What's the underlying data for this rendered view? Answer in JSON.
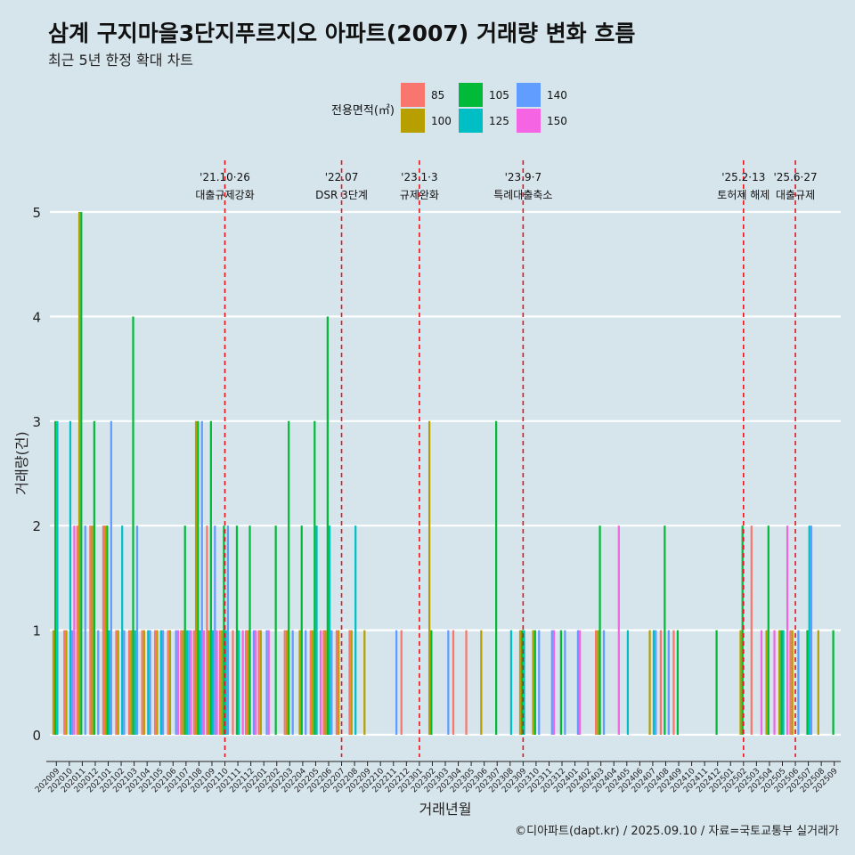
{
  "title": "삼계 구지마을3단지푸르지오 아파트(2007) 거래량 변화 흐름",
  "subtitle": "최근 5년 한정 확대 차트",
  "caption": "©디아파트(dapt.kr) / 2025.09.10 / 자료=국토교통부 실거래가",
  "chart_data": {
    "type": "bar",
    "xlabel": "거래년월",
    "ylabel": "거래량(건)",
    "ylim": [
      0,
      5
    ],
    "yticks": [
      0,
      1,
      2,
      3,
      4,
      5
    ],
    "grid": "horizontal",
    "legend": {
      "title": "전용면적(㎡)",
      "placement": "top",
      "items": [
        {
          "name": "85",
          "color": "#F8766D"
        },
        {
          "name": "100",
          "color": "#B79F00"
        },
        {
          "name": "105",
          "color": "#00BA38"
        },
        {
          "name": "125",
          "color": "#00BFC4"
        },
        {
          "name": "140",
          "color": "#619CFF"
        },
        {
          "name": "150",
          "color": "#F564E3"
        }
      ]
    },
    "categories": [
      "202009",
      "202010",
      "202011",
      "202012",
      "202101",
      "202102",
      "202103",
      "202104",
      "202105",
      "202106",
      "202107",
      "202108",
      "202109",
      "202110",
      "202111",
      "202112",
      "202201",
      "202202",
      "202203",
      "202204",
      "202205",
      "202206",
      "202207",
      "202208",
      "202209",
      "202210",
      "202211",
      "202212",
      "202301",
      "202302",
      "202303",
      "202304",
      "202305",
      "202306",
      "202307",
      "202308",
      "202309",
      "202310",
      "202311",
      "202312",
      "202401",
      "202402",
      "202403",
      "202404",
      "202405",
      "202406",
      "202407",
      "202408",
      "202409",
      "202410",
      "202411",
      "202412",
      "202501",
      "202502",
      "202503",
      "202504",
      "202505",
      "202506",
      "202507",
      "202508",
      "202509"
    ],
    "bars": [
      {
        "month": "202009",
        "values": {
          "85": 0,
          "100": 1,
          "105": 3,
          "125": 3,
          "140": 0,
          "150": 0
        }
      },
      {
        "month": "202010",
        "values": {
          "85": 1,
          "100": 1,
          "105": 0,
          "125": 3,
          "140": 1,
          "150": 2
        }
      },
      {
        "month": "202011",
        "values": {
          "85": 2,
          "100": 5,
          "105": 5,
          "125": 0,
          "140": 2,
          "150": 0
        }
      },
      {
        "month": "202012",
        "values": {
          "85": 2,
          "100": 2,
          "105": 3,
          "125": 0,
          "140": 1,
          "150": 0
        }
      },
      {
        "month": "202101",
        "values": {
          "85": 2,
          "100": 2,
          "105": 2,
          "125": 1,
          "140": 3,
          "150": 0
        }
      },
      {
        "month": "202102",
        "values": {
          "85": 1,
          "100": 1,
          "105": 0,
          "125": 2,
          "140": 1,
          "150": 0
        }
      },
      {
        "month": "202103",
        "values": {
          "85": 1,
          "100": 1,
          "105": 4,
          "125": 1,
          "140": 2,
          "150": 0
        }
      },
      {
        "month": "202104",
        "values": {
          "85": 1,
          "100": 1,
          "105": 0,
          "125": 1,
          "140": 1,
          "150": 0
        }
      },
      {
        "month": "202105",
        "values": {
          "85": 1,
          "100": 1,
          "105": 0,
          "125": 1,
          "140": 1,
          "150": 0
        }
      },
      {
        "month": "202106",
        "values": {
          "85": 1,
          "100": 1,
          "105": 0,
          "125": 0,
          "140": 1,
          "150": 1
        }
      },
      {
        "month": "202107",
        "values": {
          "85": 1,
          "100": 1,
          "105": 2,
          "125": 1,
          "140": 1,
          "150": 1
        }
      },
      {
        "month": "202108",
        "values": {
          "85": 1,
          "100": 3,
          "105": 3,
          "125": 1,
          "140": 3,
          "150": 1
        }
      },
      {
        "month": "202109",
        "values": {
          "85": 2,
          "100": 1,
          "105": 3,
          "125": 1,
          "140": 2,
          "150": 1
        }
      },
      {
        "month": "202110",
        "values": {
          "85": 1,
          "100": 1,
          "105": 2,
          "125": 1,
          "140": 2,
          "150": 0
        }
      },
      {
        "month": "202111",
        "values": {
          "85": 1,
          "100": 0,
          "105": 2,
          "125": 1,
          "140": 0,
          "150": 1
        }
      },
      {
        "month": "202112",
        "values": {
          "85": 1,
          "100": 1,
          "105": 2,
          "125": 0,
          "140": 1,
          "150": 1
        }
      },
      {
        "month": "202201",
        "values": {
          "85": 1,
          "100": 1,
          "105": 0,
          "125": 0,
          "140": 1,
          "150": 1
        }
      },
      {
        "month": "202202",
        "values": {
          "85": 0,
          "100": 0,
          "105": 2,
          "125": 0,
          "140": 0,
          "150": 0
        }
      },
      {
        "month": "202203",
        "values": {
          "85": 1,
          "100": 1,
          "105": 3,
          "125": 0,
          "140": 1,
          "150": 0
        }
      },
      {
        "month": "202204",
        "values": {
          "85": 0,
          "100": 1,
          "105": 2,
          "125": 0,
          "140": 1,
          "150": 0
        }
      },
      {
        "month": "202205",
        "values": {
          "85": 1,
          "100": 1,
          "105": 3,
          "125": 2,
          "140": 0,
          "150": 1
        }
      },
      {
        "month": "202206",
        "values": {
          "85": 1,
          "100": 1,
          "105": 4,
          "125": 2,
          "140": 1,
          "150": 0
        }
      },
      {
        "month": "202207",
        "values": {
          "85": 1,
          "100": 1,
          "105": 0,
          "125": 0,
          "140": 0,
          "150": 0
        }
      },
      {
        "month": "202208",
        "values": {
          "85": 1,
          "100": 1,
          "105": 0,
          "125": 2,
          "140": 0,
          "150": 0
        }
      },
      {
        "month": "202209",
        "values": {
          "85": 0,
          "100": 1,
          "105": 0,
          "125": 0,
          "140": 0,
          "150": 0
        }
      },
      {
        "month": "202210",
        "values": {
          "85": 0,
          "100": 0,
          "105": 0,
          "125": 0,
          "140": 0,
          "150": 0
        }
      },
      {
        "month": "202211",
        "values": {
          "85": 0,
          "100": 0,
          "105": 0,
          "125": 0,
          "140": 1,
          "150": 0
        }
      },
      {
        "month": "202212",
        "values": {
          "85": 1,
          "100": 0,
          "105": 0,
          "125": 0,
          "140": 0,
          "150": 0
        }
      },
      {
        "month": "202301",
        "values": {
          "85": 0,
          "100": 0,
          "105": 0,
          "125": 0,
          "140": 0,
          "150": 0
        }
      },
      {
        "month": "202302",
        "values": {
          "85": 0,
          "100": 3,
          "105": 1,
          "125": 0,
          "140": 0,
          "150": 0
        }
      },
      {
        "month": "202303",
        "values": {
          "85": 0,
          "100": 0,
          "105": 0,
          "125": 0,
          "140": 1,
          "150": 0
        }
      },
      {
        "month": "202304",
        "values": {
          "85": 1,
          "100": 0,
          "105": 0,
          "125": 0,
          "140": 0,
          "150": 0
        }
      },
      {
        "month": "202305",
        "values": {
          "85": 1,
          "100": 0,
          "105": 0,
          "125": 0,
          "140": 0,
          "150": 0
        }
      },
      {
        "month": "202306",
        "values": {
          "85": 0,
          "100": 1,
          "105": 0,
          "125": 0,
          "140": 0,
          "150": 0
        }
      },
      {
        "month": "202307",
        "values": {
          "85": 0,
          "100": 0,
          "105": 3,
          "125": 0,
          "140": 0,
          "150": 0
        }
      },
      {
        "month": "202308",
        "values": {
          "85": 0,
          "100": 0,
          "105": 0,
          "125": 1,
          "140": 0,
          "150": 0
        }
      },
      {
        "month": "202309",
        "values": {
          "85": 0,
          "100": 1,
          "105": 1,
          "125": 1,
          "140": 0,
          "150": 0
        }
      },
      {
        "month": "202310",
        "values": {
          "85": 0,
          "100": 1,
          "105": 1,
          "125": 0,
          "140": 1,
          "150": 0
        }
      },
      {
        "month": "202311",
        "values": {
          "85": 0,
          "100": 0,
          "105": 0,
          "125": 0,
          "140": 1,
          "150": 1
        }
      },
      {
        "month": "202312",
        "values": {
          "85": 0,
          "100": 0,
          "105": 1,
          "125": 0,
          "140": 1,
          "150": 0
        }
      },
      {
        "month": "202401",
        "values": {
          "85": 0,
          "100": 0,
          "105": 0,
          "125": 0,
          "140": 1,
          "150": 1
        }
      },
      {
        "month": "202402",
        "values": {
          "85": 0,
          "100": 0,
          "105": 0,
          "125": 0,
          "140": 0,
          "150": 0
        }
      },
      {
        "month": "202403",
        "values": {
          "85": 1,
          "100": 1,
          "105": 2,
          "125": 0,
          "140": 1,
          "150": 0
        }
      },
      {
        "month": "202404",
        "values": {
          "85": 0,
          "100": 0,
          "105": 0,
          "125": 0,
          "140": 0,
          "150": 2
        }
      },
      {
        "month": "202405",
        "values": {
          "85": 0,
          "100": 0,
          "105": 0,
          "125": 1,
          "140": 0,
          "150": 0
        }
      },
      {
        "month": "202406",
        "values": {
          "85": 0,
          "100": 0,
          "105": 0,
          "125": 0,
          "140": 0,
          "150": 0
        }
      },
      {
        "month": "202407",
        "values": {
          "85": 0,
          "100": 1,
          "105": 0,
          "125": 1,
          "140": 1,
          "150": 0
        }
      },
      {
        "month": "202408",
        "values": {
          "85": 1,
          "100": 0,
          "105": 2,
          "125": 0,
          "140": 1,
          "150": 0
        }
      },
      {
        "month": "202409",
        "values": {
          "85": 1,
          "100": 0,
          "105": 1,
          "125": 0,
          "140": 0,
          "150": 0
        }
      },
      {
        "month": "202410",
        "values": {
          "85": 0,
          "100": 0,
          "105": 0,
          "125": 0,
          "140": 0,
          "150": 0
        }
      },
      {
        "month": "202411",
        "values": {
          "85": 0,
          "100": 0,
          "105": 0,
          "125": 0,
          "140": 0,
          "150": 0
        }
      },
      {
        "month": "202412",
        "values": {
          "85": 0,
          "100": 0,
          "105": 1,
          "125": 0,
          "140": 0,
          "150": 0
        }
      },
      {
        "month": "202501",
        "values": {
          "85": 0,
          "100": 0,
          "105": 0,
          "125": 0,
          "140": 0,
          "150": 0
        }
      },
      {
        "month": "202502",
        "values": {
          "85": 0,
          "100": 1,
          "105": 2,
          "125": 0,
          "140": 0,
          "150": 0
        }
      },
      {
        "month": "202503",
        "values": {
          "85": 2,
          "100": 0,
          "105": 0,
          "125": 0,
          "140": 0,
          "150": 1
        }
      },
      {
        "month": "202504",
        "values": {
          "85": 0,
          "100": 1,
          "105": 2,
          "125": 0,
          "140": 0,
          "150": 1
        }
      },
      {
        "month": "202505",
        "values": {
          "85": 0,
          "100": 1,
          "105": 1,
          "125": 1,
          "140": 0,
          "150": 2
        }
      },
      {
        "month": "202506",
        "values": {
          "85": 1,
          "100": 1,
          "105": 0,
          "125": 0,
          "140": 1,
          "150": 0
        }
      },
      {
        "month": "202507",
        "values": {
          "85": 0,
          "100": 0,
          "105": 1,
          "125": 2,
          "140": 2,
          "150": 0
        }
      },
      {
        "month": "202508",
        "values": {
          "85": 0,
          "100": 1,
          "105": 0,
          "125": 0,
          "140": 0,
          "150": 0
        }
      },
      {
        "month": "202509",
        "values": {
          "85": 0,
          "100": 0,
          "105": 1,
          "125": 0,
          "140": 0,
          "150": 0
        }
      }
    ],
    "annotations": [
      {
        "month": "202110",
        "date": "'21.10·26",
        "label": "대출규제강화"
      },
      {
        "month": "202207",
        "date": "'22.07",
        "label": "DSR 3단계"
      },
      {
        "month": "202301",
        "date": "'23.1·3",
        "label": "규제완화"
      },
      {
        "month": "202309",
        "date": "'23.9·7",
        "label": "특례대출축소"
      },
      {
        "month": "202502",
        "date": "'25.2·13",
        "label": "토허제 해제"
      },
      {
        "month": "202506",
        "date": "'25.6·27",
        "label": "대출규제"
      }
    ]
  }
}
